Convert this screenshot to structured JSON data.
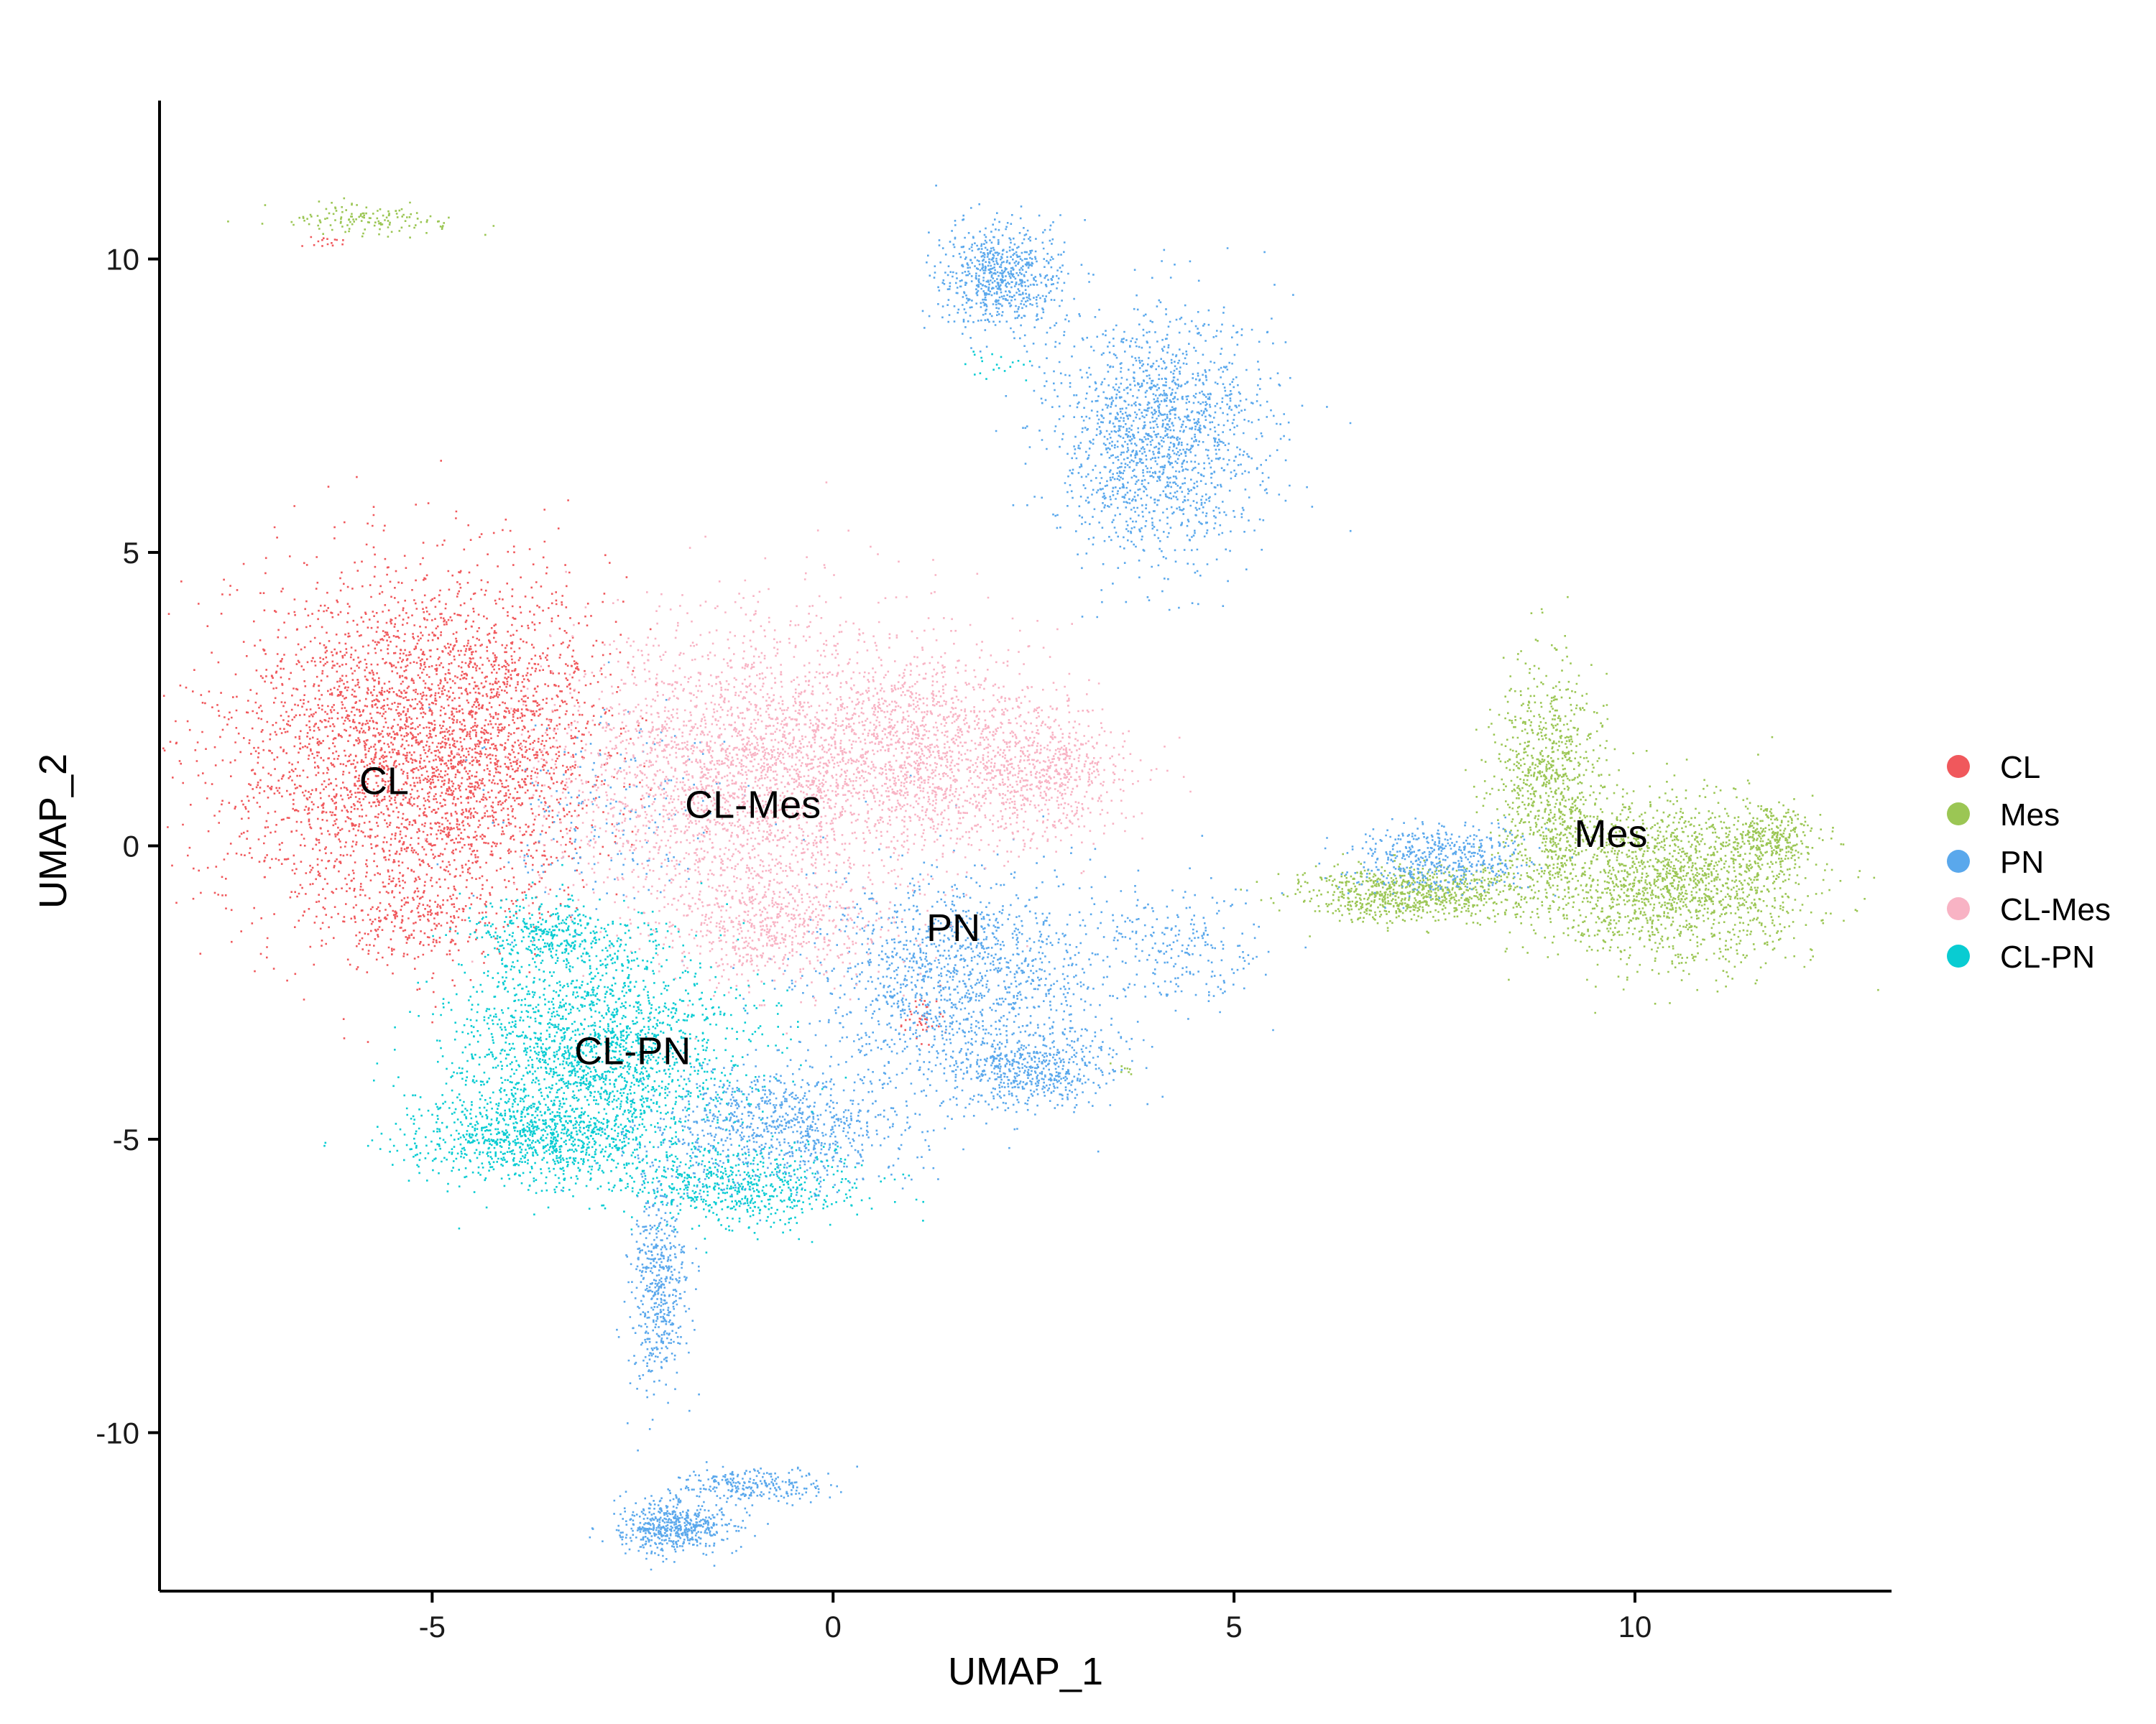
{
  "chart_data": {
    "type": "scatter",
    "title": "",
    "xlabel": "UMAP_1",
    "ylabel": "UMAP_2",
    "xlim": [
      -8.4,
      13.2
    ],
    "ylim": [
      -12.7,
      12.7
    ],
    "xticks": [
      -5,
      0,
      5,
      10
    ],
    "yticks": [
      -10,
      -5,
      0,
      5,
      10
    ],
    "xtick_labels": [
      "-5",
      "0",
      "5",
      "10"
    ],
    "ytick_labels": [
      "-10",
      "-5",
      "0",
      "5",
      "10"
    ],
    "grid": false,
    "legend_position": "right",
    "series": [
      {
        "name": "CL",
        "color": "#F0585C",
        "label_at": [
          -5.6,
          1.1
        ],
        "regions": [
          {
            "cx": -5.6,
            "cy": 1.6,
            "rx": 2.1,
            "ry": 3.0,
            "n": 2600
          },
          {
            "cx": -4.2,
            "cy": 2.0,
            "rx": 1.4,
            "ry": 2.6,
            "n": 1300
          },
          {
            "cx": -5.2,
            "cy": -1.2,
            "rx": 1.2,
            "ry": 0.9,
            "n": 250
          },
          {
            "cx": 1.1,
            "cy": -2.9,
            "rx": 0.3,
            "ry": 0.4,
            "n": 40
          },
          {
            "cx": -6.3,
            "cy": 10.3,
            "rx": 0.3,
            "ry": 0.1,
            "n": 15
          }
        ]
      },
      {
        "name": "Mes",
        "color": "#9BC654",
        "label_at": [
          9.7,
          0.2
        ],
        "regions": [
          {
            "cx": 10.5,
            "cy": -0.6,
            "rx": 1.6,
            "ry": 1.4,
            "n": 1700
          },
          {
            "cx": 8.9,
            "cy": 1.0,
            "rx": 0.7,
            "ry": 2.0,
            "n": 900
          },
          {
            "cx": 7.2,
            "cy": -0.8,
            "rx": 1.4,
            "ry": 0.45,
            "n": 800
          },
          {
            "cx": 11.7,
            "cy": 0.1,
            "rx": 0.5,
            "ry": 0.6,
            "n": 250
          },
          {
            "cx": -5.8,
            "cy": 10.7,
            "rx": 1.0,
            "ry": 0.25,
            "n": 140
          },
          {
            "cx": 3.6,
            "cy": -3.8,
            "rx": 0.2,
            "ry": 0.1,
            "n": 8
          }
        ]
      },
      {
        "name": "PN",
        "color": "#5AA8EC",
        "label_at": [
          1.5,
          -1.4
        ],
        "regions": [
          {
            "cx": 4.0,
            "cy": 7.0,
            "rx": 1.3,
            "ry": 2.1,
            "n": 1600
          },
          {
            "cx": 2.1,
            "cy": 9.7,
            "rx": 0.8,
            "ry": 0.9,
            "n": 700
          },
          {
            "cx": 1.6,
            "cy": -2.3,
            "rx": 1.9,
            "ry": 1.8,
            "n": 1400
          },
          {
            "cx": 2.4,
            "cy": -3.8,
            "rx": 1.0,
            "ry": 0.6,
            "n": 500
          },
          {
            "cx": -0.7,
            "cy": -4.8,
            "rx": 1.6,
            "ry": 1.0,
            "n": 900
          },
          {
            "cx": 4.3,
            "cy": -1.7,
            "rx": 1.1,
            "ry": 1.0,
            "n": 220
          },
          {
            "cx": 7.5,
            "cy": -0.2,
            "rx": 1.1,
            "ry": 0.6,
            "n": 500
          },
          {
            "cx": -2.2,
            "cy": -7.5,
            "rx": 0.35,
            "ry": 1.8,
            "n": 500
          },
          {
            "cx": -2.0,
            "cy": -11.6,
            "rx": 0.7,
            "ry": 0.45,
            "n": 550
          },
          {
            "cx": -1.0,
            "cy": -10.9,
            "rx": 0.9,
            "ry": 0.3,
            "n": 250
          },
          {
            "cx": -2.8,
            "cy": 0.5,
            "rx": 1.5,
            "ry": 1.8,
            "n": 200
          }
        ]
      },
      {
        "name": "CL-Mes",
        "color": "#F8B3C4",
        "label_at": [
          -1.0,
          0.7
        ],
        "regions": [
          {
            "cx": -1.2,
            "cy": 1.2,
            "rx": 2.2,
            "ry": 2.6,
            "n": 2700
          },
          {
            "cx": 1.2,
            "cy": 1.6,
            "rx": 1.7,
            "ry": 1.8,
            "n": 1500
          },
          {
            "cx": 2.8,
            "cy": 1.2,
            "rx": 0.9,
            "ry": 1.0,
            "n": 500
          },
          {
            "cx": -0.8,
            "cy": -1.4,
            "rx": 1.2,
            "ry": 0.9,
            "n": 500
          }
        ]
      },
      {
        "name": "CL-PN",
        "color": "#09CCD2",
        "label_at": [
          -2.5,
          -3.5
        ],
        "regions": [
          {
            "cx": -3.0,
            "cy": -3.5,
            "rx": 1.8,
            "ry": 1.9,
            "n": 2100
          },
          {
            "cx": -3.8,
            "cy": -5.0,
            "rx": 1.5,
            "ry": 0.7,
            "n": 800
          },
          {
            "cx": -1.2,
            "cy": -5.8,
            "rx": 1.5,
            "ry": 0.7,
            "n": 600
          },
          {
            "cx": -3.5,
            "cy": -1.5,
            "rx": 1.0,
            "ry": 0.6,
            "n": 350
          },
          {
            "cx": 2.0,
            "cy": 8.2,
            "rx": 0.4,
            "ry": 0.3,
            "n": 20
          }
        ]
      }
    ]
  }
}
